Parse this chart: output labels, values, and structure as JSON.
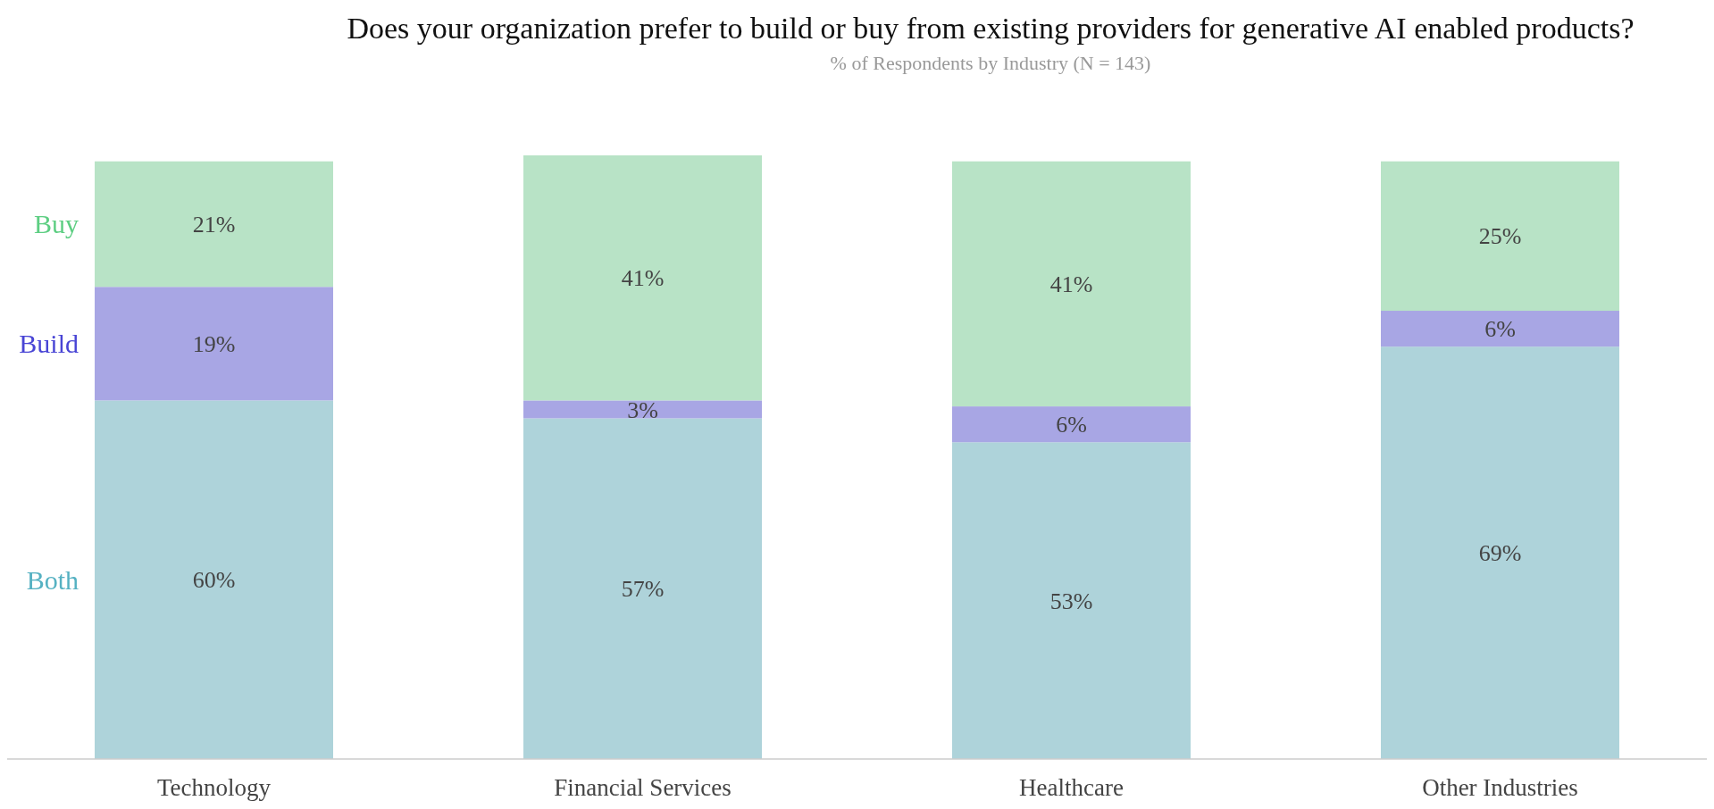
{
  "chart_data": {
    "type": "bar",
    "title": "Does your organization prefer to build or buy from existing providers for generative AI enabled products?",
    "subtitle": "% of Respondents by Industry  (N = 143)",
    "categories": [
      "Technology",
      "Financial Services",
      "Healthcare",
      "Other Industries"
    ],
    "stacked": true,
    "legend": "left",
    "tick_labels": "x",
    "ylim": [
      0,
      101
    ],
    "series": [
      {
        "name": "Both",
        "color": "#aed3da",
        "values": [
          60,
          57,
          53,
          69
        ],
        "value_labels": [
          "60%",
          "57%",
          "53%",
          "69%"
        ]
      },
      {
        "name": "Build",
        "color": "#a8a6e4",
        "values": [
          19,
          3,
          6,
          6
        ],
        "value_labels": [
          "19%",
          "3%",
          "6%",
          "6%"
        ]
      },
      {
        "name": "Buy",
        "color": "#b8e3c6",
        "values": [
          21,
          41,
          41,
          25
        ],
        "value_labels": [
          "21%",
          "41%",
          "41%",
          "25%"
        ]
      }
    ]
  }
}
